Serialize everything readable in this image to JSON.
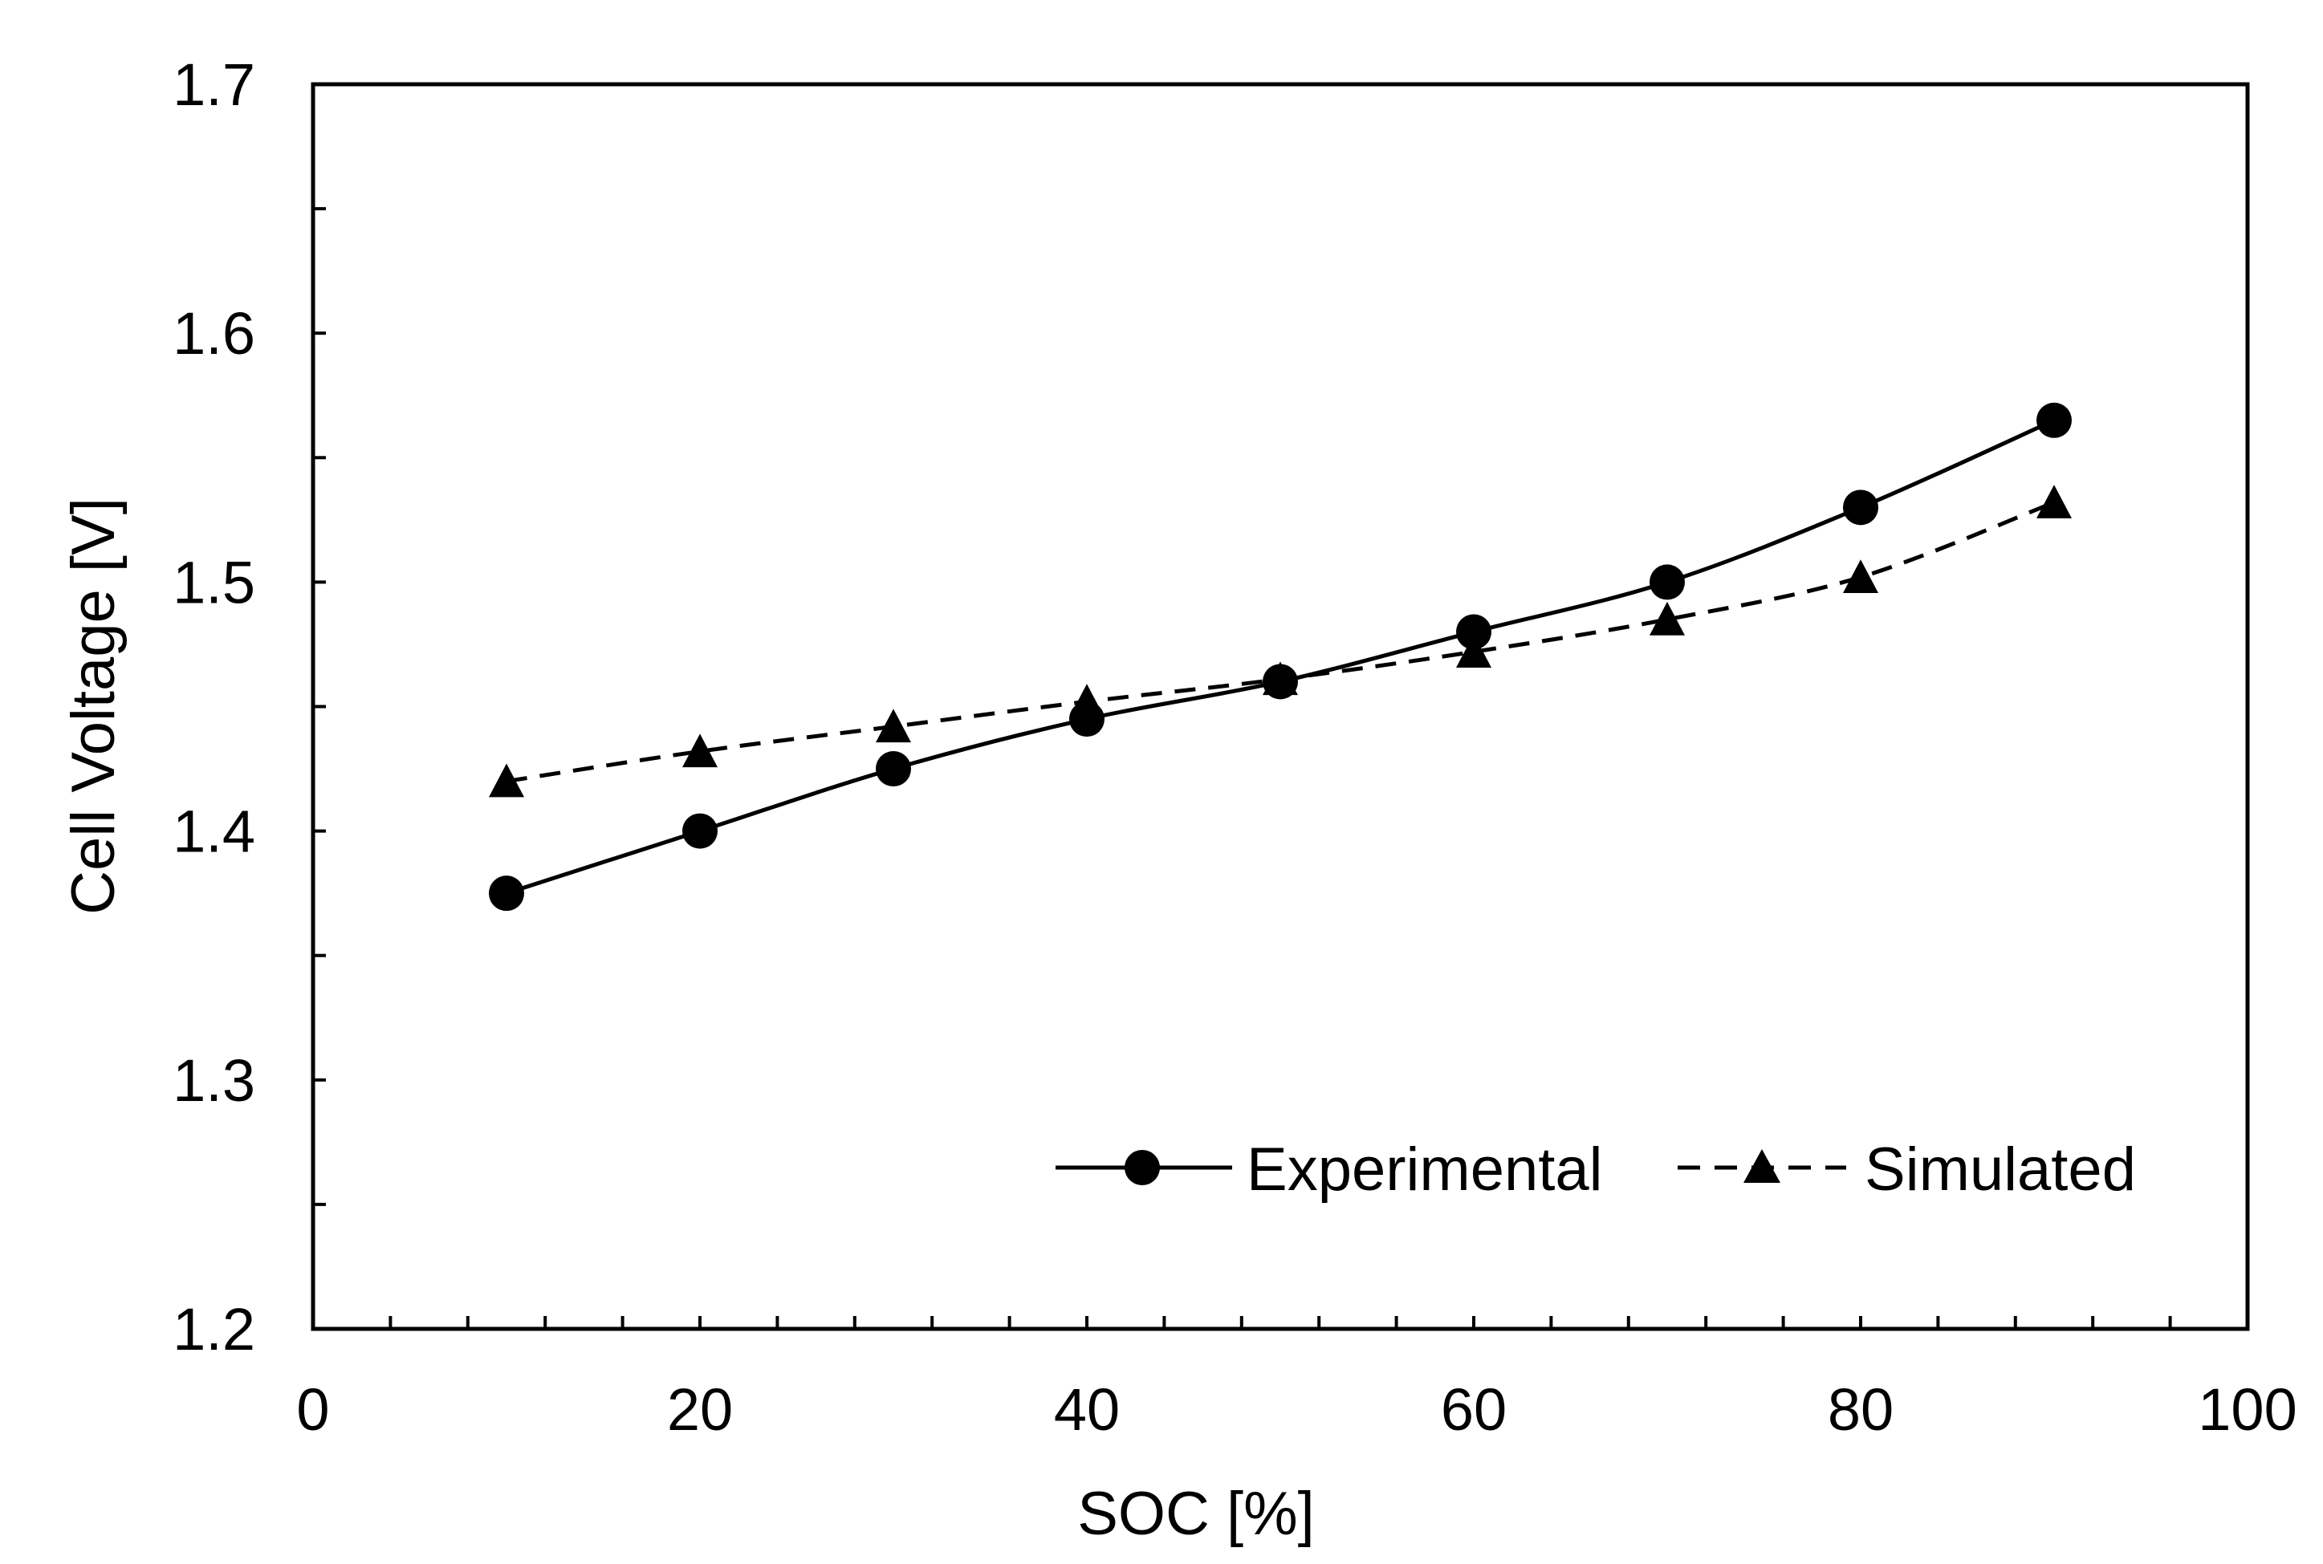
{
  "chart_data": {
    "type": "line",
    "title": "",
    "xlabel": "SOC [%]",
    "ylabel": "Cell Voltage [V]",
    "xlim": [
      0,
      100
    ],
    "ylim": [
      1.2,
      1.7
    ],
    "x_ticks": [
      0,
      20,
      40,
      60,
      80,
      100
    ],
    "x_tick_labels": [
      "0",
      "20",
      "40",
      "60",
      "80",
      "100"
    ],
    "x_minor_step": 4,
    "y_ticks": [
      1.2,
      1.3,
      1.4,
      1.5,
      1.6,
      1.7
    ],
    "y_tick_labels": [
      "1.2",
      "1.3",
      "1.4",
      "1.5",
      "1.6",
      "1.7"
    ],
    "y_minor_step": 0.05,
    "grid": false,
    "legend_position": "bottom-right",
    "x": [
      10,
      20,
      30,
      40,
      50,
      60,
      70,
      80,
      90
    ],
    "series": [
      {
        "name": "Experimental",
        "marker": "circle",
        "line_style": "solid",
        "color": "#000000",
        "values": [
          1.375,
          1.4,
          1.425,
          1.445,
          1.46,
          1.48,
          1.5,
          1.53,
          1.565
        ]
      },
      {
        "name": "Simulated",
        "marker": "triangle",
        "line_style": "dashed",
        "color": "#000000",
        "values": [
          1.42,
          1.432,
          1.442,
          1.452,
          1.461,
          1.472,
          1.485,
          1.502,
          1.532
        ]
      }
    ]
  }
}
